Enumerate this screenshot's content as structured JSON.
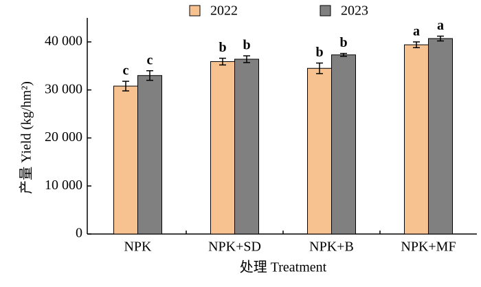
{
  "chart_data": {
    "type": "bar",
    "x_label": "处理 Treatment",
    "y_label": "产量 Yield (kg/hm²)",
    "categories": [
      "NPK",
      "NPK+SD",
      "NPK+B",
      "NPK+MF"
    ],
    "series": [
      {
        "name": "2022",
        "color": "#f8c190",
        "values": [
          30800,
          35900,
          34500,
          39400
        ],
        "errors": [
          1000,
          700,
          1100,
          600
        ],
        "letters": [
          "c",
          "b",
          "b",
          "a"
        ]
      },
      {
        "name": "2023",
        "color": "#808080",
        "values": [
          33000,
          36400,
          37300,
          40700
        ],
        "errors": [
          1000,
          700,
          300,
          500
        ],
        "letters": [
          "c",
          "b",
          "b",
          "a"
        ]
      }
    ],
    "ylim": [
      0,
      45000
    ],
    "yticks": [
      0,
      {
        "value": 10000,
        "label": "10 000"
      },
      {
        "value": 20000,
        "label": "20 000"
      },
      {
        "value": 30000,
        "label": "30 000"
      },
      {
        "value": 40000,
        "label": "40 000"
      }
    ]
  }
}
